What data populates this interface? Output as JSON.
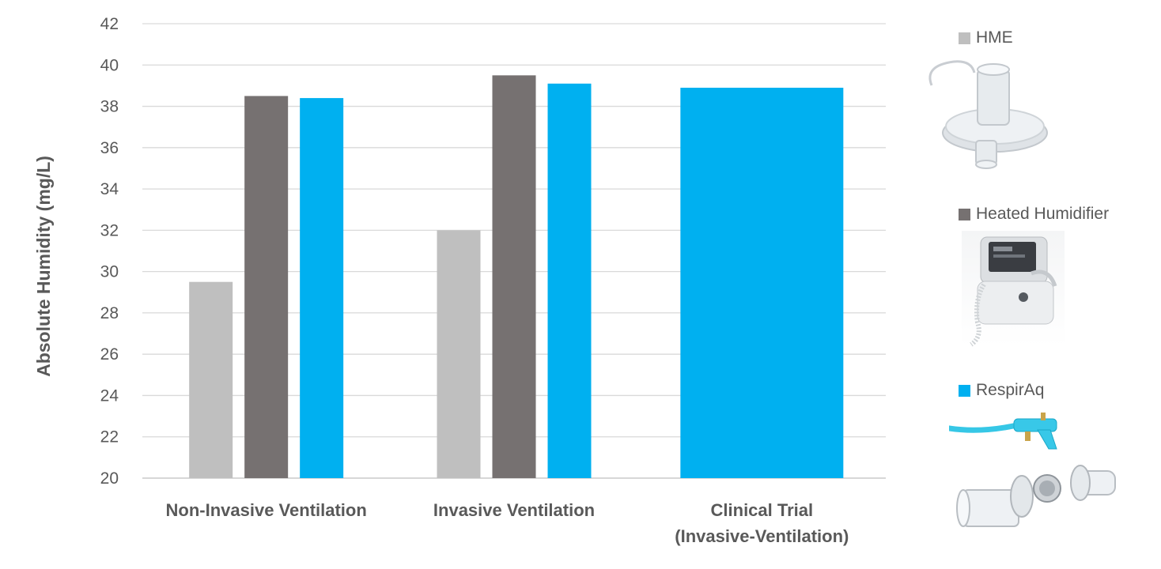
{
  "chart_data": {
    "type": "bar",
    "ylabel": "Absolute Humidity (mg/L)",
    "ylim": [
      20,
      42
    ],
    "yticks": [
      "20",
      "22",
      "24",
      "26",
      "28",
      "30",
      "32",
      "34",
      "36",
      "38",
      "40",
      "42"
    ],
    "grid": true,
    "legend_position": "right",
    "categories": [
      {
        "lines": [
          "Non-Invasive Ventilation"
        ]
      },
      {
        "lines": [
          "Invasive Ventilation"
        ]
      },
      {
        "lines": [
          "Clinical Trial",
          "(Invasive-Ventilation)"
        ]
      }
    ],
    "series": [
      {
        "name": "HME",
        "color": "#bfbfbf",
        "values": [
          29.5,
          32.0,
          null
        ]
      },
      {
        "name": "Heated Humidifier",
        "color": "#767171",
        "values": [
          38.5,
          39.5,
          null
        ]
      },
      {
        "name": "RespirAq",
        "color": "#00b0f0",
        "values": [
          38.4,
          39.1,
          38.9
        ]
      }
    ]
  },
  "legend_images": [
    "hme-filter-image",
    "heated-humidifier-image",
    "respiraq-device-image"
  ]
}
